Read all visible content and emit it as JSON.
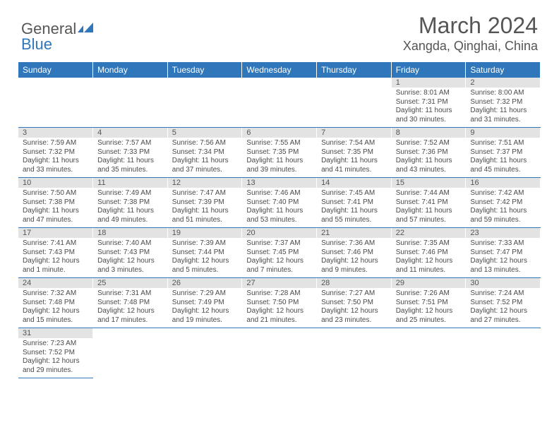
{
  "header": {
    "logo_word1": "General",
    "logo_word2": "Blue",
    "month_title": "March 2024",
    "location": "Xangda, Qinghai, China"
  },
  "style": {
    "header_bg": "#2f76bb",
    "header_fg": "#ffffff",
    "daynum_bg": "#e3e3e3",
    "border_color": "#2f76bb",
    "text_color": "#4a4a4a",
    "title_fontsize": 32,
    "location_fontsize": 18,
    "dayhead_fontsize": 12,
    "daynum_fontsize": 11,
    "cell_fontsize": 10
  },
  "calendar": {
    "day_headers": [
      "Sunday",
      "Monday",
      "Tuesday",
      "Wednesday",
      "Thursday",
      "Friday",
      "Saturday"
    ],
    "weeks": [
      [
        null,
        null,
        null,
        null,
        null,
        {
          "n": "1",
          "sunrise": "8:01 AM",
          "sunset": "7:31 PM",
          "daylight": "11 hours and 30 minutes."
        },
        {
          "n": "2",
          "sunrise": "8:00 AM",
          "sunset": "7:32 PM",
          "daylight": "11 hours and 31 minutes."
        }
      ],
      [
        {
          "n": "3",
          "sunrise": "7:59 AM",
          "sunset": "7:32 PM",
          "daylight": "11 hours and 33 minutes."
        },
        {
          "n": "4",
          "sunrise": "7:57 AM",
          "sunset": "7:33 PM",
          "daylight": "11 hours and 35 minutes."
        },
        {
          "n": "5",
          "sunrise": "7:56 AM",
          "sunset": "7:34 PM",
          "daylight": "11 hours and 37 minutes."
        },
        {
          "n": "6",
          "sunrise": "7:55 AM",
          "sunset": "7:35 PM",
          "daylight": "11 hours and 39 minutes."
        },
        {
          "n": "7",
          "sunrise": "7:54 AM",
          "sunset": "7:35 PM",
          "daylight": "11 hours and 41 minutes."
        },
        {
          "n": "8",
          "sunrise": "7:52 AM",
          "sunset": "7:36 PM",
          "daylight": "11 hours and 43 minutes."
        },
        {
          "n": "9",
          "sunrise": "7:51 AM",
          "sunset": "7:37 PM",
          "daylight": "11 hours and 45 minutes."
        }
      ],
      [
        {
          "n": "10",
          "sunrise": "7:50 AM",
          "sunset": "7:38 PM",
          "daylight": "11 hours and 47 minutes."
        },
        {
          "n": "11",
          "sunrise": "7:49 AM",
          "sunset": "7:38 PM",
          "daylight": "11 hours and 49 minutes."
        },
        {
          "n": "12",
          "sunrise": "7:47 AM",
          "sunset": "7:39 PM",
          "daylight": "11 hours and 51 minutes."
        },
        {
          "n": "13",
          "sunrise": "7:46 AM",
          "sunset": "7:40 PM",
          "daylight": "11 hours and 53 minutes."
        },
        {
          "n": "14",
          "sunrise": "7:45 AM",
          "sunset": "7:41 PM",
          "daylight": "11 hours and 55 minutes."
        },
        {
          "n": "15",
          "sunrise": "7:44 AM",
          "sunset": "7:41 PM",
          "daylight": "11 hours and 57 minutes."
        },
        {
          "n": "16",
          "sunrise": "7:42 AM",
          "sunset": "7:42 PM",
          "daylight": "11 hours and 59 minutes."
        }
      ],
      [
        {
          "n": "17",
          "sunrise": "7:41 AM",
          "sunset": "7:43 PM",
          "daylight": "12 hours and 1 minute."
        },
        {
          "n": "18",
          "sunrise": "7:40 AM",
          "sunset": "7:43 PM",
          "daylight": "12 hours and 3 minutes."
        },
        {
          "n": "19",
          "sunrise": "7:39 AM",
          "sunset": "7:44 PM",
          "daylight": "12 hours and 5 minutes."
        },
        {
          "n": "20",
          "sunrise": "7:37 AM",
          "sunset": "7:45 PM",
          "daylight": "12 hours and 7 minutes."
        },
        {
          "n": "21",
          "sunrise": "7:36 AM",
          "sunset": "7:46 PM",
          "daylight": "12 hours and 9 minutes."
        },
        {
          "n": "22",
          "sunrise": "7:35 AM",
          "sunset": "7:46 PM",
          "daylight": "12 hours and 11 minutes."
        },
        {
          "n": "23",
          "sunrise": "7:33 AM",
          "sunset": "7:47 PM",
          "daylight": "12 hours and 13 minutes."
        }
      ],
      [
        {
          "n": "24",
          "sunrise": "7:32 AM",
          "sunset": "7:48 PM",
          "daylight": "12 hours and 15 minutes."
        },
        {
          "n": "25",
          "sunrise": "7:31 AM",
          "sunset": "7:48 PM",
          "daylight": "12 hours and 17 minutes."
        },
        {
          "n": "26",
          "sunrise": "7:29 AM",
          "sunset": "7:49 PM",
          "daylight": "12 hours and 19 minutes."
        },
        {
          "n": "27",
          "sunrise": "7:28 AM",
          "sunset": "7:50 PM",
          "daylight": "12 hours and 21 minutes."
        },
        {
          "n": "28",
          "sunrise": "7:27 AM",
          "sunset": "7:50 PM",
          "daylight": "12 hours and 23 minutes."
        },
        {
          "n": "29",
          "sunrise": "7:26 AM",
          "sunset": "7:51 PM",
          "daylight": "12 hours and 25 minutes."
        },
        {
          "n": "30",
          "sunrise": "7:24 AM",
          "sunset": "7:52 PM",
          "daylight": "12 hours and 27 minutes."
        }
      ],
      [
        {
          "n": "31",
          "sunrise": "7:23 AM",
          "sunset": "7:52 PM",
          "daylight": "12 hours and 29 minutes."
        },
        null,
        null,
        null,
        null,
        null,
        null
      ]
    ]
  },
  "labels": {
    "sunrise": "Sunrise: ",
    "sunset": "Sunset: ",
    "daylight": "Daylight: "
  }
}
